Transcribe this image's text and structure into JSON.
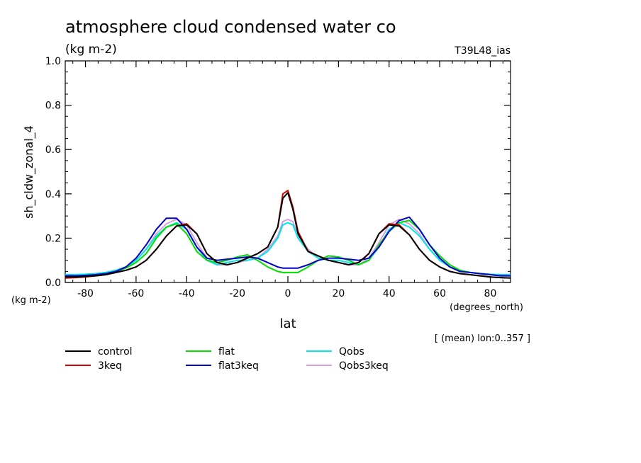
{
  "header": {
    "title": "atmosphere cloud condensed water co",
    "units": "(kg m-2)",
    "run_id": "T39L48_ias"
  },
  "footer": {
    "mean_note": "[ (mean) lon:0..357 ]"
  },
  "chart_data": {
    "type": "line",
    "title": "atmosphere cloud condensed water co",
    "xlabel": "lat",
    "x_units": "(degrees_north)",
    "ylabel": "sh_cldw_zonal_4",
    "y_units": "(kg m-2)",
    "xlim": [
      -88,
      88
    ],
    "ylim": [
      0.0,
      1.0
    ],
    "x_ticks": [
      -80,
      -60,
      -40,
      -20,
      0,
      20,
      40,
      60,
      80
    ],
    "x_tick_labels": [
      "-80",
      "-60",
      "-40",
      "-20",
      "0",
      "20",
      "40",
      "60",
      "80"
    ],
    "y_ticks": [
      0.0,
      0.2,
      0.4,
      0.6,
      0.8,
      1.0
    ],
    "y_tick_labels": [
      "0.0",
      "0.2",
      "0.4",
      "0.6",
      "0.8",
      "1.0"
    ],
    "grid": false,
    "legend_position": "bottom",
    "x": [
      -88,
      -84,
      -80,
      -76,
      -72,
      -68,
      -64,
      -60,
      -56,
      -52,
      -48,
      -44,
      -40,
      -36,
      -32,
      -28,
      -24,
      -20,
      -16,
      -12,
      -8,
      -4,
      -2,
      0,
      2,
      4,
      8,
      12,
      16,
      20,
      24,
      28,
      32,
      36,
      40,
      44,
      48,
      52,
      56,
      60,
      64,
      68,
      72,
      76,
      80,
      84,
      88
    ],
    "series": [
      {
        "name": "control",
        "color": "#000000",
        "values": [
          0.025,
          0.025,
          0.027,
          0.03,
          0.035,
          0.045,
          0.055,
          0.07,
          0.1,
          0.15,
          0.21,
          0.255,
          0.26,
          0.22,
          0.13,
          0.09,
          0.08,
          0.09,
          0.11,
          0.13,
          0.16,
          0.25,
          0.38,
          0.405,
          0.33,
          0.22,
          0.14,
          0.12,
          0.1,
          0.09,
          0.08,
          0.09,
          0.13,
          0.22,
          0.26,
          0.255,
          0.215,
          0.15,
          0.1,
          0.07,
          0.05,
          0.04,
          0.035,
          0.03,
          0.025,
          0.022,
          0.02
        ]
      },
      {
        "name": "3keq",
        "color": "#dd0000",
        "values": [
          0.02,
          0.022,
          0.025,
          0.03,
          0.035,
          0.045,
          0.055,
          0.07,
          0.1,
          0.15,
          0.21,
          0.255,
          0.265,
          0.22,
          0.13,
          0.09,
          0.08,
          0.09,
          0.11,
          0.13,
          0.16,
          0.25,
          0.4,
          0.415,
          0.34,
          0.23,
          0.14,
          0.12,
          0.1,
          0.09,
          0.08,
          0.09,
          0.13,
          0.22,
          0.265,
          0.26,
          0.215,
          0.15,
          0.1,
          0.07,
          0.05,
          0.04,
          0.035,
          0.03,
          0.025,
          0.022,
          0.02
        ]
      },
      {
        "name": "flat",
        "color": "#00dd00",
        "values": [
          0.03,
          0.03,
          0.032,
          0.035,
          0.04,
          0.05,
          0.065,
          0.09,
          0.13,
          0.2,
          0.25,
          0.265,
          0.22,
          0.14,
          0.1,
          0.09,
          0.1,
          0.115,
          0.125,
          0.1,
          0.07,
          0.05,
          0.045,
          0.045,
          0.045,
          0.045,
          0.07,
          0.1,
          0.12,
          0.115,
          0.1,
          0.08,
          0.1,
          0.17,
          0.23,
          0.27,
          0.28,
          0.24,
          0.17,
          0.12,
          0.08,
          0.055,
          0.045,
          0.04,
          0.035,
          0.03,
          0.03
        ]
      },
      {
        "name": "flat3keq",
        "color": "#0000cc",
        "values": [
          0.03,
          0.03,
          0.032,
          0.035,
          0.04,
          0.05,
          0.07,
          0.11,
          0.17,
          0.24,
          0.29,
          0.29,
          0.24,
          0.16,
          0.11,
          0.1,
          0.105,
          0.11,
          0.115,
          0.11,
          0.09,
          0.07,
          0.065,
          0.065,
          0.065,
          0.065,
          0.08,
          0.1,
          0.11,
          0.11,
          0.105,
          0.1,
          0.11,
          0.16,
          0.23,
          0.28,
          0.295,
          0.24,
          0.17,
          0.11,
          0.07,
          0.05,
          0.045,
          0.04,
          0.035,
          0.03,
          0.03
        ]
      },
      {
        "name": "Qobs",
        "color": "#00e5e5",
        "values": [
          0.035,
          0.035,
          0.037,
          0.04,
          0.045,
          0.055,
          0.07,
          0.1,
          0.15,
          0.21,
          0.25,
          0.27,
          0.24,
          0.16,
          0.1,
          0.08,
          0.09,
          0.1,
          0.1,
          0.11,
          0.14,
          0.2,
          0.26,
          0.27,
          0.26,
          0.2,
          0.14,
          0.11,
          0.1,
          0.1,
          0.09,
          0.08,
          0.1,
          0.16,
          0.24,
          0.27,
          0.25,
          0.21,
          0.15,
          0.1,
          0.07,
          0.055,
          0.045,
          0.04,
          0.037,
          0.035,
          0.035
        ]
      },
      {
        "name": "Qobs3keq",
        "color": "#d8a0e0",
        "values": [
          0.035,
          0.035,
          0.037,
          0.04,
          0.045,
          0.055,
          0.07,
          0.1,
          0.15,
          0.22,
          0.265,
          0.285,
          0.26,
          0.18,
          0.11,
          0.08,
          0.08,
          0.09,
          0.1,
          0.11,
          0.15,
          0.21,
          0.275,
          0.285,
          0.275,
          0.21,
          0.15,
          0.11,
          0.1,
          0.09,
          0.08,
          0.08,
          0.11,
          0.18,
          0.26,
          0.285,
          0.265,
          0.22,
          0.15,
          0.1,
          0.07,
          0.055,
          0.045,
          0.04,
          0.037,
          0.035,
          0.035
        ]
      }
    ]
  }
}
